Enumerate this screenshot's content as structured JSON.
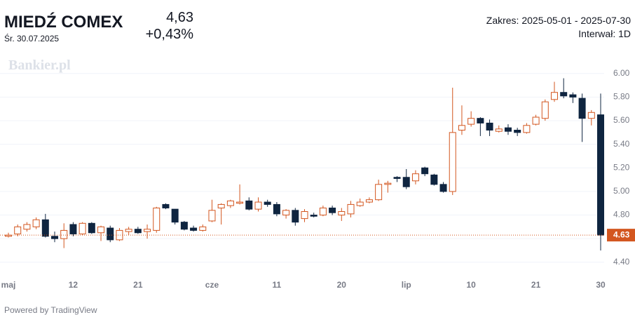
{
  "header": {
    "title": "MIEDŹ COMEX",
    "date": "Śr. 30.07.2025",
    "price": "4,63",
    "change": "+0,43%",
    "range": "Zakres: 2025-05-01 - 2025-07-30",
    "interval": "Interwał: 1D"
  },
  "watermark": "Bankier.pl",
  "footer": "Powered by TradingView",
  "chart_data": {
    "type": "candlestick",
    "categories": [
      "maj",
      null,
      null,
      null,
      null,
      null,
      null,
      "12",
      null,
      null,
      null,
      null,
      null,
      null,
      "21",
      null,
      null,
      null,
      null,
      null,
      null,
      null,
      "cze",
      null,
      null,
      null,
      null,
      null,
      null,
      "11",
      null,
      null,
      null,
      null,
      null,
      null,
      "20",
      null,
      null,
      null,
      null,
      null,
      null,
      "lip",
      null,
      null,
      null,
      null,
      null,
      null,
      "10",
      null,
      null,
      null,
      null,
      null,
      null,
      "21",
      null,
      null,
      null,
      null,
      null,
      null,
      "30"
    ],
    "series": [
      {
        "up_color": "#d3561f",
        "down_color": "#0f2540",
        "open": [
          4.62,
          4.64,
          4.68,
          4.7,
          4.76,
          4.62,
          4.6,
          4.72,
          4.64,
          4.73,
          4.65,
          4.69,
          4.59,
          4.66,
          4.68,
          4.66,
          4.67,
          4.89,
          4.85,
          4.74,
          4.69,
          4.67,
          4.75,
          4.86,
          4.88,
          4.9,
          4.92,
          4.85,
          4.91,
          4.89,
          4.8,
          4.84,
          4.77,
          4.8,
          4.8,
          4.86,
          4.8,
          4.81,
          4.88,
          4.91,
          4.93,
          5.06,
          5.12,
          5.12,
          5.09,
          5.2,
          5.14,
          5.06,
          5.0,
          5.52,
          5.57,
          5.62,
          5.58,
          5.51,
          5.54,
          5.52,
          5.5,
          5.57,
          5.62,
          5.78,
          5.84,
          5.82,
          5.79,
          5.62,
          5.65
        ],
        "high": [
          4.65,
          4.72,
          4.74,
          4.78,
          4.81,
          4.66,
          4.73,
          4.74,
          4.74,
          4.74,
          4.71,
          4.71,
          4.69,
          4.7,
          4.7,
          4.72,
          4.87,
          4.9,
          4.85,
          4.75,
          4.71,
          4.72,
          4.93,
          4.9,
          4.93,
          5.06,
          4.95,
          4.95,
          4.93,
          4.91,
          4.85,
          4.86,
          4.85,
          4.82,
          4.88,
          4.88,
          4.86,
          4.92,
          4.94,
          4.95,
          5.1,
          5.09,
          5.13,
          5.19,
          5.18,
          5.21,
          5.15,
          5.08,
          5.88,
          5.73,
          5.68,
          5.63,
          5.61,
          5.56,
          5.57,
          5.54,
          5.58,
          5.65,
          5.78,
          5.93,
          5.96,
          5.84,
          5.83,
          5.69,
          5.83
        ],
        "low": [
          4.61,
          4.62,
          4.66,
          4.68,
          4.61,
          4.57,
          4.52,
          4.62,
          4.63,
          4.64,
          4.58,
          4.57,
          4.58,
          4.63,
          4.64,
          4.6,
          4.65,
          4.85,
          4.72,
          4.67,
          4.66,
          4.66,
          4.74,
          4.72,
          4.86,
          4.89,
          4.84,
          4.83,
          4.87,
          4.79,
          4.77,
          4.71,
          4.74,
          4.78,
          4.79,
          4.8,
          4.75,
          4.78,
          4.87,
          4.9,
          4.92,
          4.99,
          5.08,
          5.02,
          5.06,
          5.13,
          5.05,
          4.99,
          4.97,
          5.48,
          5.55,
          5.47,
          5.47,
          5.5,
          5.48,
          5.47,
          5.49,
          5.56,
          5.6,
          5.76,
          5.79,
          5.75,
          5.42,
          5.56,
          4.5
        ],
        "close": [
          4.63,
          4.7,
          4.72,
          4.76,
          4.62,
          4.6,
          4.67,
          4.64,
          4.73,
          4.65,
          4.7,
          4.59,
          4.67,
          4.68,
          4.65,
          4.68,
          4.86,
          4.86,
          4.74,
          4.68,
          4.67,
          4.7,
          4.84,
          4.89,
          4.92,
          4.91,
          4.85,
          4.91,
          4.89,
          4.81,
          4.84,
          4.74,
          4.83,
          4.79,
          4.86,
          4.82,
          4.83,
          4.89,
          4.91,
          4.93,
          5.06,
          5.07,
          5.11,
          5.04,
          5.15,
          5.15,
          5.06,
          5.0,
          5.5,
          5.56,
          5.62,
          5.58,
          5.52,
          5.53,
          5.51,
          5.5,
          5.56,
          5.63,
          5.76,
          5.84,
          5.81,
          5.8,
          5.62,
          5.67,
          4.63
        ]
      }
    ],
    "last_price": 4.63,
    "ylim": [
      4.3,
      6.1
    ],
    "yticks": [
      {
        "value": 6,
        "label": "6.00"
      },
      {
        "value": 5.8,
        "label": "5.80"
      },
      {
        "value": 5.6,
        "label": "5.60"
      },
      {
        "value": 5.4,
        "label": "5.40"
      },
      {
        "value": 5.2,
        "label": "5.20"
      },
      {
        "value": 5,
        "label": "5.00"
      },
      {
        "value": 4.8,
        "label": "4.80"
      },
      {
        "value": 4.6,
        "label": "4.60"
      },
      {
        "value": 4.4,
        "label": "4.40"
      }
    ],
    "grid": true
  }
}
